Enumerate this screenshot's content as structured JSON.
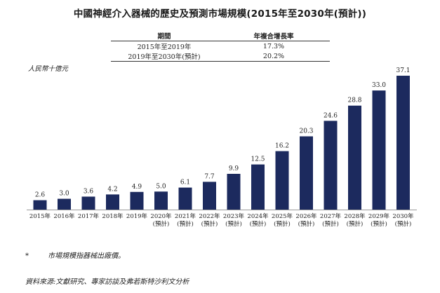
{
  "title": "中國神經介入器械的歷史及預測市場規模(2015年至2030年(預計))",
  "cagr_table": {
    "headers": [
      "期間",
      "年複合增長率"
    ],
    "rows": [
      {
        "period": "2015年至2019年",
        "rate": "17.3%"
      },
      {
        "period": "2019年至2030年(預計)",
        "rate": "20.2%"
      }
    ]
  },
  "footnote": {
    "mark": "*",
    "text": "市場規模指器械出廠價。"
  },
  "source": "資料來源:文獻研究、專家訪談及弗若斯特沙利文分析",
  "chart_data": {
    "type": "bar",
    "ylabel": "人民幣十億元",
    "categories": [
      "2015年",
      "2016年",
      "2017年",
      "2018年",
      "2019年",
      "2020年(預計)",
      "2021年(預計)",
      "2022年(預計)",
      "2023年(預計)",
      "2024年(預計)",
      "2025年(預計)",
      "2026年(預計)",
      "2027年(預計)",
      "2028年(預計)",
      "2029年(預計)",
      "2030年(預計)"
    ],
    "category_lines": [
      [
        "2015年"
      ],
      [
        "2016年"
      ],
      [
        "2017年"
      ],
      [
        "2018年"
      ],
      [
        "2019年"
      ],
      [
        "2020年",
        "(預計)"
      ],
      [
        "2021年",
        "(預計)"
      ],
      [
        "2022年",
        "(預計)"
      ],
      [
        "2023年",
        "(預計)"
      ],
      [
        "2024年",
        "(預計)"
      ],
      [
        "2025年",
        "(預計)"
      ],
      [
        "2026年",
        "(預計)"
      ],
      [
        "2027年",
        "(預計)"
      ],
      [
        "2028年",
        "(預計)"
      ],
      [
        "2029年",
        "(預計)"
      ],
      [
        "2030年",
        "(預計)"
      ]
    ],
    "values": [
      2.6,
      3.0,
      3.6,
      4.2,
      4.9,
      5.0,
      6.1,
      7.7,
      9.9,
      12.5,
      16.2,
      20.3,
      24.6,
      28.8,
      33.0,
      37.1
    ],
    "value_labels": [
      "2.6",
      "3.0",
      "3.6",
      "4.2",
      "4.9",
      "5.0",
      "6.1",
      "7.7",
      "9.9",
      "12.5",
      "16.2",
      "20.3",
      "24.6",
      "28.8",
      "33.0",
      "37.1"
    ],
    "ylim": [
      0,
      37.1
    ],
    "grid": false,
    "legend": "none",
    "bar_color": "#1c2a5e"
  }
}
